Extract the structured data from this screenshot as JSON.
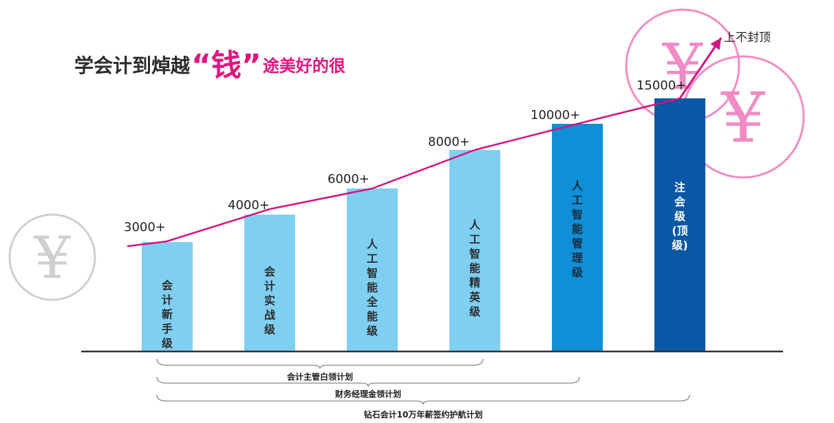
{
  "header": {
    "title_part1": "学会计到焯越",
    "title_highlight": "“钱”",
    "title_part2": "途美好的很"
  },
  "annotation": {
    "arrow_label": "上不封顶"
  },
  "chart_data": {
    "type": "bar",
    "title": "学会计到焯越“钱”途美好的很",
    "categories": [
      "会计新手级",
      "会计实战级",
      "人工智能全能级",
      "人工智能精英级",
      "人工智能管理级",
      "注会级(顶级)"
    ],
    "bar_text_columns": [
      [
        "会",
        "计",
        "新",
        "手",
        "级"
      ],
      [
        "会",
        "计",
        "实",
        "战",
        "级"
      ],
      [
        "人",
        "工",
        "智",
        "能",
        "全",
        "能",
        "级"
      ],
      [
        "人",
        "工",
        "智",
        "能",
        "精",
        "英",
        "级"
      ],
      [
        "人",
        "工",
        "智",
        "能",
        "管",
        "理",
        "级"
      ],
      [
        "注",
        "会",
        "级",
        "(顶",
        "级)"
      ]
    ],
    "values": [
      3000,
      4000,
      6000,
      8000,
      10000,
      15000
    ],
    "data_labels": [
      "3000+",
      "4000+",
      "6000+",
      "8000+",
      "10000+",
      "15000+"
    ],
    "ylim": [
      0,
      17000
    ],
    "grid": false,
    "trend_line": true,
    "colors": {
      "bars": [
        "#7fcff2",
        "#7fcff2",
        "#7fcff2",
        "#7fcff2",
        "#0e8fd6",
        "#0957a5"
      ],
      "bar_text": [
        "#2b2b2b",
        "#2b2b2b",
        "#2b2b2b",
        "#2b2b2b",
        "#1b2a3a",
        "#ffffff"
      ],
      "trend": "#d5127f",
      "axis": "#333333"
    },
    "plans": [
      {
        "label": "会计主管白领计划",
        "from": "会计新手级",
        "to": "人工智能精英级"
      },
      {
        "label": "财务经理金领计划",
        "from": "会计新手级",
        "to": "人工智能管理级"
      },
      {
        "label": "钻石会计10万年薪签约护航计划",
        "from": "会计新手级",
        "to": "注会级(顶级)"
      }
    ]
  },
  "decorations": {
    "currency_symbol": "¥",
    "icons": [
      "yen-coin-gray-icon",
      "yen-coin-pink-icon",
      "yen-coin-pink-icon"
    ],
    "colors": {
      "coin_gray": "#cfcfcf",
      "coin_pink": "#f08cc4"
    }
  }
}
